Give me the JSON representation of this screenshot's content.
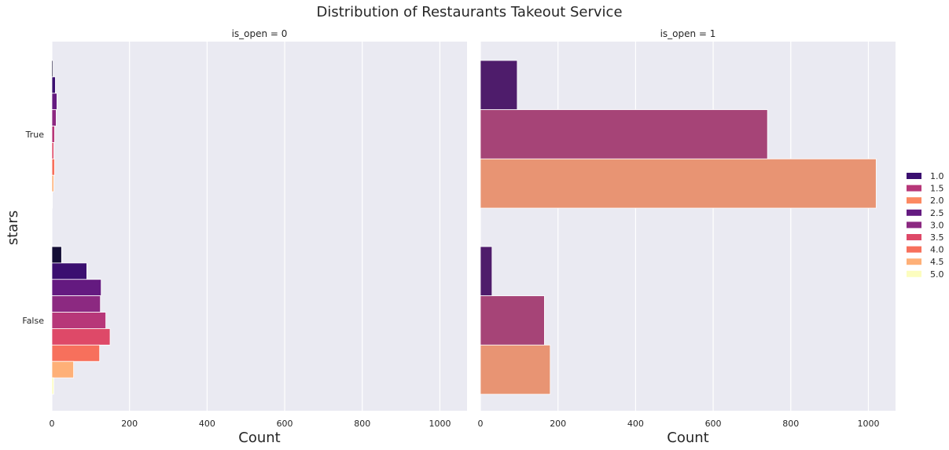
{
  "title": "Distribution of Restaurants Takeout Service",
  "ylabel": "stars",
  "legend_items": [
    "1.0",
    "1.5",
    "2.0",
    "2.5",
    "3.0",
    "3.5",
    "4.0",
    "4.5",
    "5.0"
  ],
  "legend_colors": [
    "#3b0f70",
    "#b73779",
    "#fc8961",
    "#641a80",
    "#8c2981",
    "#de4968",
    "#f7705c",
    "#feb078",
    "#fcfdbf"
  ],
  "chart_data": {
    "type": "bar",
    "orientation": "horizontal",
    "title": "Distribution of Restaurants Takeout Service",
    "xlabel": "Count",
    "ylabel": "stars",
    "xlim": [
      0,
      1070
    ],
    "xticks": [
      0,
      200,
      400,
      600,
      800,
      1000
    ],
    "categories": [
      "True",
      "False"
    ],
    "legend_placement": "right",
    "grid": true,
    "panels": [
      {
        "title": "is_open = 0",
        "bar_colors": [
          "#140e36",
          "#3b0f70",
          "#641a80",
          "#8c2981",
          "#b73779",
          "#de4968",
          "#f7705c",
          "#feb078",
          "#fcfdbf"
        ],
        "series": [
          {
            "name": "1.0",
            "values": [
              3,
              25
            ]
          },
          {
            "name": "1.5",
            "values": [
              9,
              90
            ]
          },
          {
            "name": "2.0",
            "values": [
              13,
              127
            ]
          },
          {
            "name": "2.5",
            "values": [
              11,
              125
            ]
          },
          {
            "name": "3.0",
            "values": [
              7,
              139
            ]
          },
          {
            "name": "3.5",
            "values": [
              5,
              150
            ]
          },
          {
            "name": "4.0",
            "values": [
              7,
              123
            ]
          },
          {
            "name": "4.5",
            "values": [
              5,
              56
            ]
          },
          {
            "name": "5.0",
            "values": [
              1,
              5
            ]
          }
        ]
      },
      {
        "title": "is_open = 1",
        "bar_colors": [
          "#4e1c6b",
          "#a64477",
          "#e89473"
        ],
        "series": [
          {
            "name": "1.0",
            "values": [
              95,
              30
            ]
          },
          {
            "name": "1.5",
            "values": [
              740,
              165
            ]
          },
          {
            "name": "2.0",
            "values": [
              1020,
              180
            ]
          }
        ]
      }
    ]
  }
}
